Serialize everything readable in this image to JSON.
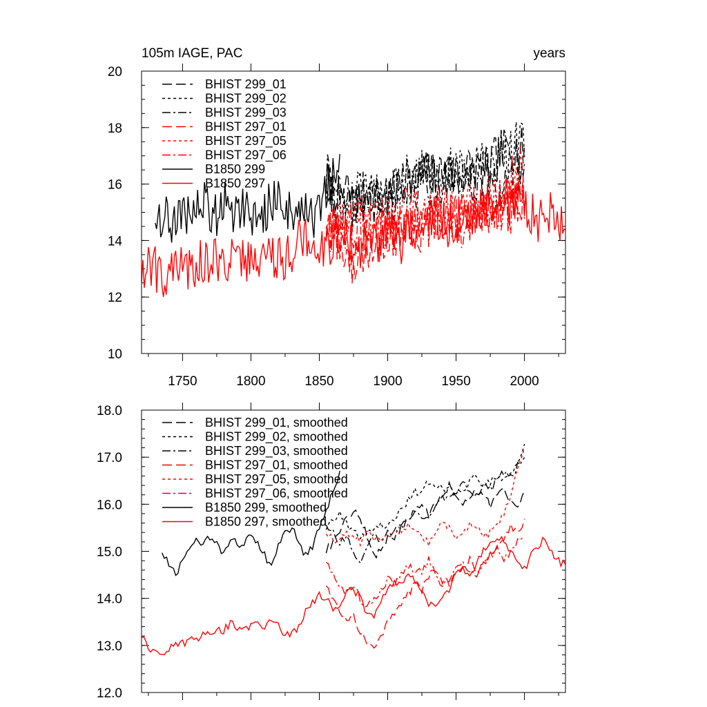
{
  "colors": {
    "black": "#000000",
    "red": "#ff0000"
  },
  "chart_data": [
    {
      "type": "line",
      "title_left": "105m IAGE, PAC",
      "title_right": "years",
      "xlim": [
        1720,
        2030
      ],
      "ylim": [
        10,
        20
      ],
      "yticks": [
        10,
        12,
        14,
        16,
        18,
        20
      ],
      "ytick_labels": [
        "10",
        "12",
        "14",
        "16",
        "18",
        "20"
      ],
      "xticks": [
        1750,
        1800,
        1850,
        1900,
        1950,
        2000
      ],
      "xtick_labels": [
        "1750",
        "1800",
        "1850",
        "1900",
        "1950",
        "2000"
      ],
      "legend_position": "top-left",
      "series": [
        {
          "name": "BHIST 299_01",
          "color": "#000000",
          "dash": "long",
          "x_start": 1855,
          "x_step": 5,
          "values": [
            16.1,
            15.7,
            15.4,
            15.9,
            15.2,
            15.5,
            15.8,
            15.3,
            15.6,
            15.4,
            15.7,
            15.9,
            16.2,
            16.0,
            16.3,
            16.4,
            16.2,
            16.5,
            16.3,
            16.1,
            16.4,
            16.6,
            16.5,
            16.3,
            16.7,
            16.9,
            17.2,
            17.4,
            17.1,
            17.3
          ]
        },
        {
          "name": "BHIST 299_02",
          "color": "#000000",
          "dash": "short",
          "x_start": 1855,
          "x_step": 5,
          "values": [
            15.9,
            15.6,
            15.3,
            15.1,
            15.4,
            15.8,
            15.5,
            15.7,
            15.6,
            15.8,
            16.1,
            16.0,
            16.3,
            16.5,
            16.4,
            16.6,
            16.3,
            16.1,
            16.5,
            16.6,
            16.4,
            16.2,
            16.6,
            16.9,
            16.7,
            16.8,
            17.3,
            17.1,
            17.5,
            17.7
          ]
        },
        {
          "name": "BHIST 299_03",
          "color": "#000000",
          "dash": "dashdot",
          "x_start": 1855,
          "x_step": 5,
          "values": [
            16.3,
            15.8,
            15.4,
            15.0,
            15.2,
            15.5,
            15.3,
            15.6,
            15.4,
            15.7,
            15.5,
            15.9,
            16.1,
            15.8,
            16.2,
            16.0,
            16.3,
            16.1,
            16.4,
            16.2,
            16.0,
            16.3,
            16.1,
            16.4,
            16.2,
            15.9,
            16.2,
            16.0,
            16.4,
            16.6
          ]
        },
        {
          "name": "BHIST 297_01",
          "color": "#ff0000",
          "dash": "long",
          "x_start": 1855,
          "x_step": 5,
          "values": [
            14.6,
            14.4,
            14.0,
            13.6,
            13.1,
            13.4,
            13.8,
            14.1,
            14.0,
            14.3,
            14.2,
            14.5,
            14.4,
            14.6,
            14.3,
            14.7,
            14.9,
            14.6,
            14.4,
            14.8,
            14.9,
            15.1,
            14.8,
            14.9,
            15.1,
            15.3,
            15.5,
            15.3,
            15.6,
            15.7
          ]
        },
        {
          "name": "BHIST 297_05",
          "color": "#ff0000",
          "dash": "short",
          "x_start": 1855,
          "x_step": 5,
          "values": [
            14.9,
            14.7,
            14.6,
            14.8,
            14.9,
            15.0,
            14.8,
            14.7,
            15.0,
            14.9,
            15.1,
            15.0,
            15.2,
            15.3,
            15.1,
            15.0,
            15.3,
            15.4,
            15.2,
            15.1,
            15.3,
            15.5,
            15.4,
            15.6,
            15.5,
            15.7,
            15.9,
            16.2,
            16.6,
            17.0
          ]
        },
        {
          "name": "BHIST 297_06",
          "color": "#ff0000",
          "dash": "dashdot",
          "x_start": 1855,
          "x_step": 5,
          "values": [
            14.5,
            14.2,
            14.3,
            14.6,
            14.4,
            14.1,
            14.3,
            14.5,
            14.4,
            14.6,
            14.3,
            14.5,
            14.7,
            14.6,
            14.4,
            14.6,
            14.8,
            14.6,
            14.9,
            14.7,
            14.5,
            14.7,
            14.9,
            15.1,
            14.8,
            14.9,
            15.2,
            15.0,
            15.3,
            15.4
          ]
        },
        {
          "name": "B1850 299",
          "color": "#000000",
          "dash": "solid",
          "x_start": 1730,
          "x_step": 5,
          "values": [
            15.0,
            14.9,
            14.7,
            14.5,
            14.8,
            15.1,
            15.0,
            15.3,
            15.1,
            14.9,
            15.5,
            15.2,
            15.0,
            15.3,
            15.1,
            14.6,
            14.9,
            15.4,
            15.5,
            15.2,
            14.9,
            15.3,
            15.1,
            14.8,
            15.0,
            15.6,
            16.2,
            16.5
          ]
        },
        {
          "name": "B1850 297",
          "color": "#ff0000",
          "dash": "solid",
          "x_start": 1720,
          "x_step": 5,
          "values": [
            12.9,
            13.2,
            13.0,
            12.8,
            13.0,
            12.9,
            13.1,
            13.0,
            13.2,
            13.3,
            13.1,
            13.4,
            13.2,
            13.5,
            13.3,
            13.4,
            13.2,
            13.6,
            13.4,
            13.5,
            13.3,
            13.5,
            13.7,
            13.9,
            14.0,
            14.2,
            13.9,
            13.8,
            14.0,
            14.3,
            14.1,
            13.9,
            13.7,
            14.0,
            13.8,
            14.1,
            14.3,
            14.2,
            14.0,
            14.3,
            14.1,
            14.5,
            14.3,
            14.6,
            14.8,
            14.5,
            14.7,
            14.9,
            14.6,
            14.9,
            15.1,
            15.2,
            15.0,
            15.3,
            15.1,
            15.4,
            15.2,
            15.0,
            14.8,
            14.9,
            15.1,
            14.6,
            14.4
          ]
        }
      ]
    },
    {
      "type": "line",
      "xlim": [
        1720,
        2030
      ],
      "ylim": [
        12.0,
        18.0
      ],
      "yticks": [
        12,
        13,
        14,
        15,
        16,
        17,
        18
      ],
      "ytick_labels": [
        "12.0",
        "13.0",
        "14.0",
        "15.0",
        "16.0",
        "17.0",
        "18.0"
      ],
      "xticks": [
        1750,
        1800,
        1850,
        1900,
        1950,
        2000
      ],
      "legend_position": "top-left",
      "series": [
        {
          "name": "BHIST 299_01, smoothed",
          "color": "#000000",
          "dash": "long",
          "x_start": 1855,
          "x_step": 5,
          "values": [
            15.0,
            15.2,
            15.4,
            15.7,
            15.9,
            15.7,
            15.3,
            14.9,
            15.0,
            15.3,
            15.5,
            15.6,
            15.7,
            15.9,
            16.0,
            15.8,
            16.0,
            16.2,
            16.4,
            16.1,
            16.0,
            16.2,
            16.3,
            16.1,
            16.0,
            16.2,
            16.3,
            16.0,
            15.9,
            16.3
          ]
        },
        {
          "name": "BHIST 299_02, smoothed",
          "color": "#000000",
          "dash": "short",
          "x_start": 1855,
          "x_step": 5,
          "values": [
            15.5,
            15.7,
            15.8,
            15.6,
            15.4,
            15.3,
            15.4,
            15.5,
            15.6,
            15.5,
            15.7,
            15.9,
            16.1,
            16.3,
            16.2,
            16.5,
            16.4,
            16.3,
            16.4,
            16.2,
            16.3,
            16.5,
            16.6,
            16.4,
            16.5,
            16.6,
            16.5,
            16.7,
            16.9,
            17.2
          ]
        },
        {
          "name": "BHIST 299_03, smoothed",
          "color": "#000000",
          "dash": "dashdot",
          "x_start": 1855,
          "x_step": 5,
          "values": [
            15.6,
            15.4,
            15.2,
            15.3,
            15.0,
            14.8,
            15.1,
            15.3,
            15.2,
            15.4,
            15.3,
            15.5,
            15.7,
            15.9,
            15.7,
            15.8,
            16.0,
            16.2,
            16.1,
            16.3,
            16.5,
            16.3,
            16.2,
            16.4,
            16.3,
            16.5,
            16.7,
            16.6,
            16.8,
            17.0
          ]
        },
        {
          "name": "BHIST 297_01, smoothed",
          "color": "#ff0000",
          "dash": "long",
          "x_start": 1855,
          "x_step": 5,
          "values": [
            14.3,
            14.0,
            13.7,
            13.5,
            13.6,
            13.3,
            13.0,
            12.95,
            13.2,
            13.5,
            13.7,
            13.9,
            14.1,
            14.3,
            14.2,
            14.5,
            14.6,
            14.4,
            14.3,
            14.5,
            14.7,
            14.8,
            14.6,
            14.8,
            14.9,
            15.1,
            15.3,
            15.5,
            15.4,
            15.6
          ]
        },
        {
          "name": "BHIST 297_05, smoothed",
          "color": "#ff0000",
          "dash": "short",
          "x_start": 1855,
          "x_step": 5,
          "values": [
            15.4,
            15.3,
            15.2,
            15.4,
            15.3,
            15.2,
            15.4,
            15.3,
            15.2,
            15.3,
            15.5,
            15.4,
            15.6,
            15.5,
            15.3,
            15.2,
            15.4,
            15.6,
            15.5,
            15.3,
            15.4,
            15.6,
            15.5,
            15.3,
            15.4,
            15.5,
            15.8,
            16.2,
            16.8,
            17.2
          ]
        },
        {
          "name": "BHIST 297_06, smoothed",
          "color": "#ff0000",
          "dash": "dashdot",
          "x_start": 1855,
          "x_step": 5,
          "values": [
            14.8,
            14.5,
            14.3,
            14.1,
            14.3,
            14.0,
            13.8,
            14.0,
            14.2,
            14.4,
            14.3,
            14.5,
            14.7,
            14.5,
            14.6,
            14.8,
            14.5,
            14.3,
            14.4,
            14.6,
            14.8,
            14.6,
            14.4,
            14.7,
            14.9,
            15.1,
            14.8,
            15.0,
            15.2,
            15.4
          ]
        },
        {
          "name": "B1850 299, smoothed",
          "color": "#000000",
          "dash": "solid",
          "x_start": 1735,
          "x_step": 5,
          "values": [
            15.0,
            14.7,
            14.5,
            14.8,
            15.0,
            15.2,
            15.1,
            15.3,
            15.2,
            14.9,
            15.3,
            15.2,
            15.1,
            15.4,
            15.2,
            14.9,
            14.7,
            15.1,
            15.4,
            15.5,
            15.2,
            14.9,
            15.1,
            15.5,
            15.8,
            16.3,
            16.7
          ]
        },
        {
          "name": "B1850 297, smoothed",
          "color": "#ff0000",
          "dash": "solid",
          "x_start": 1720,
          "x_step": 5,
          "values": [
            13.2,
            13.0,
            12.85,
            12.8,
            12.9,
            13.0,
            13.05,
            13.1,
            13.15,
            13.2,
            13.3,
            13.35,
            13.3,
            13.5,
            13.4,
            13.3,
            13.45,
            13.5,
            13.4,
            13.6,
            13.5,
            13.2,
            13.3,
            13.4,
            13.7,
            13.9,
            14.1,
            14.0,
            13.8,
            13.9,
            14.1,
            14.2,
            14.0,
            13.7,
            13.6,
            13.9,
            14.2,
            14.4,
            14.3,
            14.6,
            14.3,
            14.1,
            13.9,
            13.8,
            14.0,
            14.2,
            14.5,
            14.6,
            14.4,
            14.8,
            15.0,
            15.2,
            15.3,
            15.2,
            15.0,
            14.8,
            14.6,
            14.9,
            15.1,
            15.3,
            15.0,
            14.8,
            14.7
          ]
        }
      ]
    }
  ]
}
